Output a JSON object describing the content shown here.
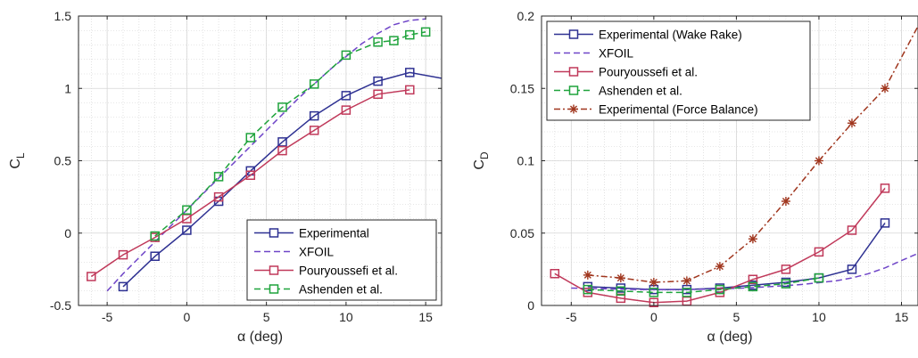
{
  "chart_data": [
    {
      "type": "line",
      "xlabel": "α (deg)",
      "ylabel": "C",
      "ylabel_sub": "L",
      "xlim": [
        -6.8,
        16
      ],
      "ylim": [
        -0.5,
        1.5
      ],
      "xticks": [
        -5,
        0,
        5,
        10,
        15
      ],
      "yticks": [
        -0.5,
        0,
        0.5,
        1,
        1.5
      ],
      "ytick_labels": [
        "-0.5",
        "0",
        "0.5",
        "1",
        "1.5"
      ],
      "grid": true,
      "legend_position": "bottom-right",
      "series": [
        {
          "name": "Experimental",
          "color": "#2E3192",
          "style": "solid",
          "marker": "square",
          "x": [
            -4,
            -2,
            0,
            2,
            4,
            6,
            8,
            10,
            12,
            14,
            16
          ],
          "y": [
            -0.37,
            -0.16,
            0.02,
            0.22,
            0.43,
            0.63,
            0.81,
            0.95,
            1.05,
            1.11,
            1.07
          ],
          "marker_count": 10
        },
        {
          "name": "XFOIL",
          "color": "#6F45C8",
          "style": "dashed",
          "marker": "none",
          "x": [
            -5,
            -4,
            -3,
            -2,
            -1,
            0,
            1,
            2,
            3,
            4,
            5,
            6,
            7,
            8,
            9,
            10,
            11,
            12,
            13,
            14,
            15
          ],
          "y": [
            -0.4,
            -0.28,
            -0.17,
            -0.06,
            0.05,
            0.16,
            0.27,
            0.38,
            0.49,
            0.6,
            0.71,
            0.82,
            0.93,
            1.03,
            1.13,
            1.22,
            1.31,
            1.38,
            1.44,
            1.47,
            1.48
          ]
        },
        {
          "name": "Pouryoussefi et al.",
          "color": "#C0395A",
          "style": "solid",
          "marker": "square",
          "x": [
            -6,
            -4,
            -2,
            0,
            2,
            4,
            6,
            8,
            10,
            12,
            14
          ],
          "y": [
            -0.3,
            -0.15,
            -0.03,
            0.1,
            0.25,
            0.4,
            0.57,
            0.71,
            0.85,
            0.96,
            0.99
          ]
        },
        {
          "name": "Ashenden et al.",
          "color": "#1FA33C",
          "style": "dashed",
          "marker": "square",
          "x": [
            -2,
            0,
            2,
            4,
            6,
            8,
            10,
            12,
            13,
            14,
            15
          ],
          "y": [
            -0.02,
            0.16,
            0.39,
            0.66,
            0.87,
            1.03,
            1.23,
            1.32,
            1.33,
            1.37,
            1.39
          ]
        }
      ]
    },
    {
      "type": "line",
      "xlabel": "α (deg)",
      "ylabel": "C",
      "ylabel_sub": "D",
      "xlim": [
        -6.8,
        16
      ],
      "ylim": [
        0,
        0.2
      ],
      "xticks": [
        -5,
        0,
        5,
        10,
        15
      ],
      "yticks": [
        0,
        0.05,
        0.1,
        0.15,
        0.2
      ],
      "ytick_labels": [
        "0",
        "0.05",
        "0.1",
        "0.15",
        "0.2"
      ],
      "grid": true,
      "legend_position": "top-left",
      "series": [
        {
          "name": "Experimental (Wake Rake)",
          "color": "#2E3192",
          "style": "solid",
          "marker": "square",
          "x": [
            -4,
            -2,
            0,
            2,
            4,
            6,
            8,
            10,
            12,
            14
          ],
          "y": [
            0.013,
            0.012,
            0.011,
            0.011,
            0.012,
            0.014,
            0.016,
            0.019,
            0.025,
            0.057
          ]
        },
        {
          "name": "XFOIL",
          "color": "#6F45C8",
          "style": "dashed",
          "marker": "none",
          "x": [
            -5,
            -3,
            -1,
            1,
            3,
            5,
            7,
            9,
            11,
            12,
            13,
            14,
            15,
            16
          ],
          "y": [
            0.012,
            0.0115,
            0.011,
            0.011,
            0.0112,
            0.0118,
            0.013,
            0.0145,
            0.017,
            0.019,
            0.022,
            0.026,
            0.031,
            0.036
          ]
        },
        {
          "name": "Pouryoussefi et al.",
          "color": "#C0395A",
          "style": "solid",
          "marker": "square",
          "x": [
            -6,
            -4,
            -2,
            0,
            2,
            4,
            6,
            8,
            10,
            12,
            14
          ],
          "y": [
            0.022,
            0.009,
            0.005,
            0.002,
            0.003,
            0.009,
            0.018,
            0.025,
            0.037,
            0.052,
            0.081
          ]
        },
        {
          "name": "Ashenden et al.",
          "color": "#1FA33C",
          "style": "dashed",
          "marker": "square",
          "x": [
            -4,
            -2,
            0,
            2,
            4,
            6,
            8,
            10
          ],
          "y": [
            0.011,
            0.01,
            0.009,
            0.009,
            0.011,
            0.013,
            0.015,
            0.019
          ]
        },
        {
          "name": "Experimental (Force Balance)",
          "color": "#A0361E",
          "style": "dashdot",
          "marker": "asterisk",
          "x": [
            -4,
            -2,
            0,
            2,
            4,
            6,
            8,
            10,
            12,
            14,
            16
          ],
          "y": [
            0.021,
            0.019,
            0.016,
            0.017,
            0.027,
            0.046,
            0.072,
            0.1,
            0.126,
            0.15,
            0.193
          ],
          "marker_count": 10
        }
      ]
    }
  ]
}
